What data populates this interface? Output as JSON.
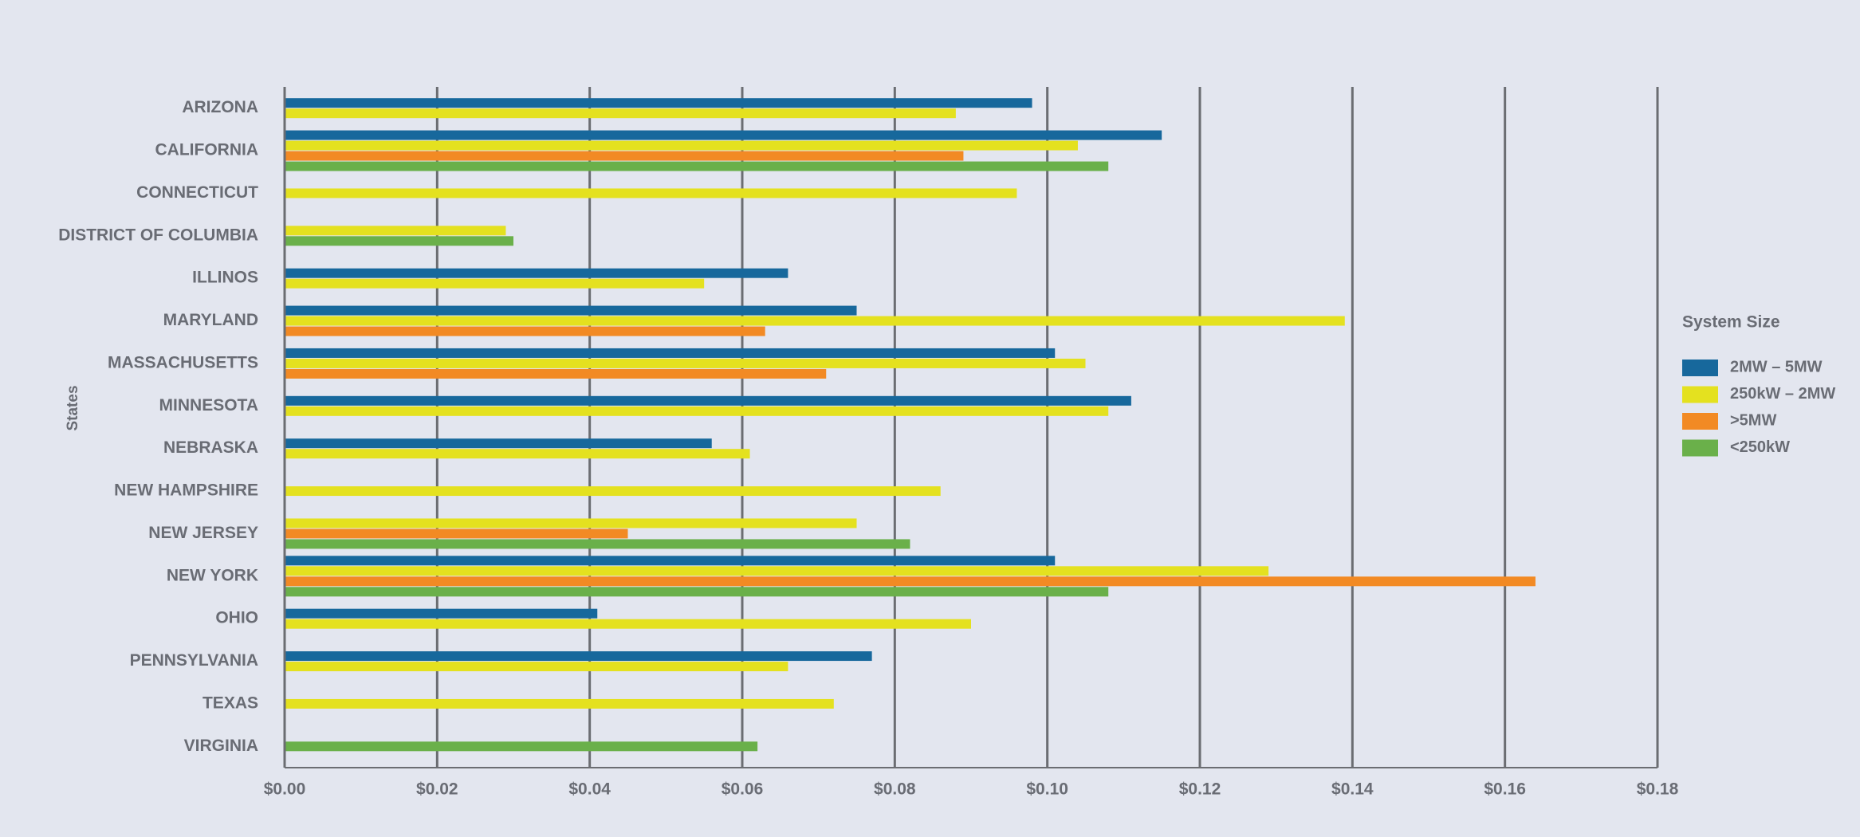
{
  "chart_data": {
    "type": "hbar",
    "y_label": "States",
    "legend_title": "System Size",
    "legend": "right",
    "grid": true,
    "categories": [
      "ARIZONA",
      "CALIFORNIA",
      "CONNECTICUT",
      "DISTRICT OF COLUMBIA",
      "ILLINOS",
      "MARYLAND",
      "MASSACHUSETTS",
      "MINNESOTA",
      "NEBRASKA",
      "NEW HAMPSHIRE",
      "NEW JERSEY",
      "NEW YORK",
      "OHIO",
      "PENNSYLVANIA",
      "TEXAS",
      "VIRGINIA"
    ],
    "series": [
      {
        "name": "2MW – 5MW",
        "color": "#17689c",
        "values": [
          0.098,
          0.115,
          null,
          null,
          0.066,
          0.075,
          0.101,
          0.111,
          0.056,
          null,
          null,
          0.101,
          0.041,
          0.077,
          null,
          null
        ]
      },
      {
        "name": "250kW – 2MW",
        "color": "#e4e11f",
        "values": [
          0.088,
          0.104,
          0.096,
          0.029,
          0.055,
          0.139,
          0.105,
          0.108,
          0.061,
          0.086,
          0.075,
          0.129,
          0.09,
          0.066,
          0.072,
          null
        ]
      },
      {
        "name": ">5MW",
        "color": "#f28a24",
        "values": [
          null,
          0.089,
          null,
          null,
          null,
          0.063,
          0.071,
          null,
          null,
          null,
          0.045,
          0.164,
          null,
          null,
          null,
          null
        ]
      },
      {
        "name": "<250kW",
        "color": "#6ab04a",
        "values": [
          null,
          0.108,
          null,
          0.03,
          null,
          null,
          null,
          null,
          null,
          null,
          0.082,
          0.108,
          null,
          null,
          null,
          0.062
        ]
      }
    ],
    "xlim": [
      0,
      0.18
    ],
    "xticks": [
      {
        "value": 0,
        "label": "$0.00"
      },
      {
        "value": 0.02,
        "label": "$0.02"
      },
      {
        "value": 0.04,
        "label": "$0.04"
      },
      {
        "value": 0.06,
        "label": "$0.06"
      },
      {
        "value": 0.08,
        "label": "$0.08"
      },
      {
        "value": 0.1,
        "label": "$0.10"
      },
      {
        "value": 0.12,
        "label": "$0.12"
      },
      {
        "value": 0.14,
        "label": "$0.14"
      },
      {
        "value": 0.16,
        "label": "$0.16"
      },
      {
        "value": 0.18,
        "label": "$0.18"
      }
    ]
  }
}
